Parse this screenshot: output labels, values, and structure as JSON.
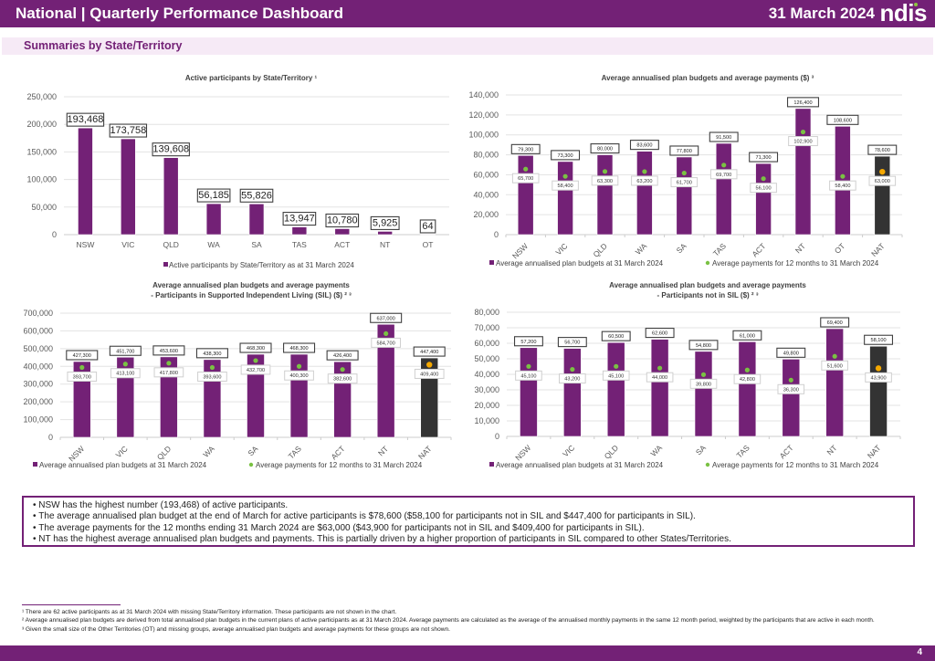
{
  "header": {
    "title": "National | Quarterly Performance Dashboard",
    "date": "31 March 2024",
    "logo": "ndis"
  },
  "section": {
    "title": "Summaries by State/Territory"
  },
  "colors": {
    "brand": "#732176",
    "bar": "#732176",
    "national_bar": "#333333",
    "payment_dot": "#7ac143",
    "national_dot": "#f5a800",
    "band": "#f6eaf6"
  },
  "chart_data": [
    {
      "id": "active",
      "type": "bar",
      "title": "Active participants by State/Territory ¹",
      "title_lines": [
        "Active participants by State/Territory ¹"
      ],
      "categories": [
        "NSW",
        "VIC",
        "QLD",
        "WA",
        "SA",
        "TAS",
        "ACT",
        "NT",
        "OT"
      ],
      "series": [
        {
          "name": "Active participants by State/Territory as at 31 March 2024",
          "values": [
            193468,
            173758,
            139608,
            56185,
            55826,
            13947,
            10780,
            5925,
            64
          ]
        }
      ],
      "value_labels": [
        "193,468",
        "173,758",
        "139,608",
        "56,185",
        "55,826",
        "13,947",
        "10,780",
        "5,925",
        "64"
      ],
      "ylim": [
        0,
        250000
      ],
      "yticks": [
        0,
        50000,
        100000,
        150000,
        200000,
        250000
      ],
      "ytick_labels": [
        "0",
        "50,000",
        "100,000",
        "150,000",
        "200,000",
        "250,000"
      ],
      "xlabel": "",
      "ylabel": "",
      "grid": true,
      "legend": "bottom",
      "legend_entries": [
        "Active participants by State/Territory as at 31 March 2024"
      ]
    },
    {
      "id": "budgets",
      "type": "bar",
      "title": "Average annualised plan budgets and average payments ($) ³",
      "title_lines": [
        "Average annualised plan budgets and average payments ($) ³"
      ],
      "categories": [
        "NSW",
        "VIC",
        "QLD",
        "WA",
        "SA",
        "TAS",
        "ACT",
        "NT",
        "OT",
        "NAT"
      ],
      "series": [
        {
          "name": "Average annualised plan budgets at 31 March 2024",
          "values": [
            79300,
            73300,
            80000,
            83600,
            77800,
            91500,
            71300,
            126400,
            108600,
            78600
          ]
        },
        {
          "name": "Average payments for 12 months to 31 March 2024",
          "type": "scatter",
          "values": [
            65700,
            58400,
            63300,
            63200,
            61700,
            69700,
            56100,
            102900,
            58400,
            63000
          ]
        }
      ],
      "bar_labels": [
        "79,300",
        "73,300",
        "80,000",
        "83,600",
        "77,800",
        "91,500",
        "71,300",
        "126,400",
        "108,600",
        "78,600"
      ],
      "dot_labels": [
        "65,700",
        "58,400",
        "63,300",
        "63,200",
        "61,700",
        "69,700",
        "56,100",
        "102,900",
        "58,400",
        "63,000"
      ],
      "ylim": [
        0,
        140000
      ],
      "yticks": [
        0,
        20000,
        40000,
        60000,
        80000,
        100000,
        120000,
        140000
      ],
      "ytick_labels": [
        "0",
        "20,000",
        "40,000",
        "60,000",
        "80,000",
        "100,000",
        "120,000",
        "140,000"
      ],
      "xlabel": "",
      "ylabel": "",
      "grid": true,
      "legend": "bottom",
      "legend_entries": [
        "Average annualised plan budgets at 31 March 2024",
        "Average payments for 12 months to 31 March 2024"
      ]
    },
    {
      "id": "sil",
      "type": "bar",
      "title": "Average annualised plan budgets and average payments - Participants in Supported Independent Living (SIL) ($) ² ³",
      "title_lines": [
        "Average annualised plan budgets and average payments",
        "- Participants in Supported Independent Living (SIL) ($) ² ³"
      ],
      "categories": [
        "NSW",
        "VIC",
        "QLD",
        "WA",
        "SA",
        "TAS",
        "ACT",
        "NT",
        "NAT"
      ],
      "series": [
        {
          "name": "Average annualised plan budgets at 31 March 2024",
          "values": [
            427300,
            451700,
            453600,
            438300,
            468300,
            468300,
            426400,
            637000,
            447400
          ]
        },
        {
          "name": "Average payments for 12 months to 31 March 2024",
          "type": "scatter",
          "values": [
            393700,
            413100,
            417800,
            393600,
            432700,
            400300,
            382600,
            584700,
            409400
          ]
        }
      ],
      "bar_labels": [
        "427,300",
        "451,700",
        "453,600",
        "438,300",
        "468,300",
        "468,300",
        "426,400",
        "637,000",
        "447,400"
      ],
      "dot_labels": [
        "393,700",
        "413,100",
        "417,800",
        "393,600",
        "432,700",
        "400,300",
        "382,600",
        "584,700",
        "409,400"
      ],
      "ylim": [
        0,
        700000
      ],
      "yticks": [
        0,
        100000,
        200000,
        300000,
        400000,
        500000,
        600000,
        700000
      ],
      "ytick_labels": [
        "0",
        "100,000",
        "200,000",
        "300,000",
        "400,000",
        "500,000",
        "600,000",
        "700,000"
      ],
      "xlabel": "",
      "ylabel": "",
      "grid": true,
      "legend": "bottom",
      "legend_entries": [
        "Average annualised plan budgets at 31 March 2024",
        "Average payments for 12 months to 31 March 2024"
      ]
    },
    {
      "id": "notsil",
      "type": "bar",
      "title": "Average annualised plan budgets and average payments - Participants not in SIL ($) ² ³",
      "title_lines": [
        "Average annualised plan budgets and average payments",
        "- Participants not in SIL ($) ² ³"
      ],
      "categories": [
        "NSW",
        "VIC",
        "QLD",
        "WA",
        "SA",
        "TAS",
        "ACT",
        "NT",
        "NAT"
      ],
      "series": [
        {
          "name": "Average annualised plan budgets at 31 March 2024",
          "values": [
            57200,
            56700,
            60500,
            62600,
            54800,
            61000,
            49800,
            69400,
            58100
          ]
        },
        {
          "name": "Average payments for 12 months to 31 March 2024",
          "type": "scatter",
          "values": [
            45100,
            43200,
            45100,
            44000,
            39800,
            42800,
            36300,
            51600,
            43900
          ]
        }
      ],
      "bar_labels": [
        "57,200",
        "56,700",
        "60,500",
        "62,600",
        "54,800",
        "61,000",
        "49,800",
        "69,400",
        "58,100"
      ],
      "dot_labels": [
        "45,100",
        "43,200",
        "45,100",
        "44,000",
        "39,800",
        "42,800",
        "36,300",
        "51,600",
        "43,900"
      ],
      "ylim": [
        0,
        80000
      ],
      "yticks": [
        0,
        10000,
        20000,
        30000,
        40000,
        50000,
        60000,
        70000,
        80000
      ],
      "ytick_labels": [
        "0",
        "10,000",
        "20,000",
        "30,000",
        "40,000",
        "50,000",
        "60,000",
        "70,000",
        "80,000"
      ],
      "xlabel": "",
      "ylabel": "",
      "grid": true,
      "legend": "bottom",
      "legend_entries": [
        "Average annualised plan budgets at 31 March 2024",
        "Average payments for 12 months to 31 March 2024"
      ]
    }
  ],
  "summary": {
    "bullets": [
      "NSW has the highest number (193,468) of active participants.",
      "The average annualised plan budget at the end of March for active participants is $78,600 ($58,100 for participants not in SIL and $447,400 for participants in SIL).",
      "The average payments for the 12 months ending 31 March 2024 are $63,000 ($43,900 for participants not in SIL and $409,400 for participants in SIL).",
      "NT has the highest average annualised plan budgets and payments. This is partially driven by a higher proportion of participants in SIL compared to other States/Territories."
    ]
  },
  "footnotes": [
    "¹ There are 62 active participants as at 31 March 2024 with missing State/Territory information. These participants are not shown in the chart.",
    "² Average annualised plan budgets are derived from total annualised plan budgets in the current plans of active participants as at 31 March 2024. Average payments are calculated as the average of the annualised monthly payments in the same 12 month period, weighted by the participants that are active in each month.",
    "³ Given the small size of the Other Territories (OT) and missing groups, average annualised plan budgets and average payments for these groups are not shown."
  ],
  "page_number": "4"
}
